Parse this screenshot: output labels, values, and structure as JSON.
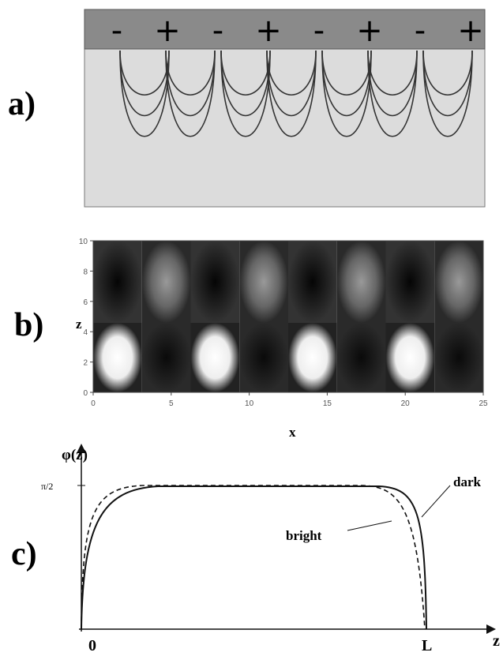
{
  "panel_a": {
    "label": "a)",
    "signs": [
      "-",
      "+",
      "-",
      "+",
      "-",
      "+",
      "-",
      "+"
    ]
  },
  "panel_b": {
    "label": "b)",
    "x_label": "x",
    "y_label": "z",
    "xticks": [
      0,
      5,
      10,
      15,
      20,
      25
    ],
    "yticks": [
      0,
      2,
      4,
      6,
      8,
      10
    ]
  },
  "panel_c": {
    "label": "c)",
    "y_label": "φ(z)",
    "y_tick": "π/2",
    "x_label": "z",
    "x_origin": "0",
    "x_end": "L",
    "curves": [
      "dark",
      "bright"
    ]
  }
}
